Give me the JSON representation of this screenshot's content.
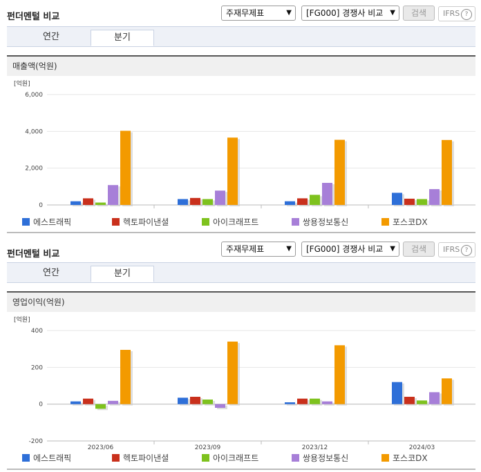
{
  "legend": [
    {
      "name": "에스트래픽",
      "color": "#2e6fd8"
    },
    {
      "name": "헥토파이낸셜",
      "color": "#c9301c"
    },
    {
      "name": "아이크래프트",
      "color": "#7ec21e"
    },
    {
      "name": "쌍용정보통신",
      "color": "#a77fd8"
    },
    {
      "name": "포스코DX",
      "color": "#f39a00"
    }
  ],
  "panels": [
    {
      "title": "펀더멘털 비교",
      "select1": "주재무제표",
      "select2": "[FG000] 경쟁사 비교",
      "search_label": "검색",
      "ifrs_label": "IFRS",
      "help_icon": "question-circle-icon",
      "tabs": [
        {
          "label": "연간",
          "active": false
        },
        {
          "label": "분기",
          "active": true
        }
      ],
      "section_title": "매출액(억원)"
    },
    {
      "title": "펀더멘털 비교",
      "select1": "주재무제표",
      "select2": "[FG000] 경쟁사 비교",
      "search_label": "검색",
      "ifrs_label": "IFRS",
      "help_icon": "question-circle-icon",
      "tabs": [
        {
          "label": "연간",
          "active": false
        },
        {
          "label": "분기",
          "active": true
        }
      ],
      "section_title": "영업이익(억원)"
    }
  ],
  "chart_data": [
    {
      "type": "bar",
      "unit_label": "[억원]",
      "categories": [
        "2023/06",
        "2023/09",
        "2023/12",
        "2024/03"
      ],
      "ylim": [
        0,
        6000
      ],
      "yticks": [
        0,
        2000,
        4000,
        6000
      ],
      "ytick_labels": [
        "0",
        "2,000",
        "4,000",
        "6,000"
      ],
      "series": [
        {
          "name": "에스트래픽",
          "values": [
            200,
            320,
            200,
            660
          ]
        },
        {
          "name": "헥토파이낸셜",
          "values": [
            360,
            380,
            360,
            340
          ]
        },
        {
          "name": "아이크래프트",
          "values": [
            130,
            320,
            550,
            320
          ]
        },
        {
          "name": "쌍용정보통신",
          "values": [
            1080,
            780,
            1200,
            860
          ]
        },
        {
          "name": "포스코DX",
          "values": [
            4030,
            3660,
            3540,
            3530
          ]
        }
      ],
      "grid": true,
      "legend_position": "bottom"
    },
    {
      "type": "bar",
      "unit_label": "[억원]",
      "categories": [
        "2023/06",
        "2023/09",
        "2023/12",
        "2024/03"
      ],
      "ylim": [
        -200,
        400
      ],
      "yticks": [
        -200,
        0,
        200,
        400
      ],
      "ytick_labels": [
        "-200",
        "0",
        "200",
        "400"
      ],
      "series": [
        {
          "name": "에스트래픽",
          "values": [
            15,
            35,
            10,
            120
          ]
        },
        {
          "name": "헥토파이낸셜",
          "values": [
            30,
            40,
            30,
            40
          ]
        },
        {
          "name": "아이크래프트",
          "values": [
            -25,
            25,
            30,
            20
          ]
        },
        {
          "name": "쌍용정보통신",
          "values": [
            18,
            -20,
            15,
            65
          ]
        },
        {
          "name": "포스코DX",
          "values": [
            295,
            340,
            320,
            140
          ]
        }
      ],
      "grid": true,
      "legend_position": "bottom"
    }
  ]
}
